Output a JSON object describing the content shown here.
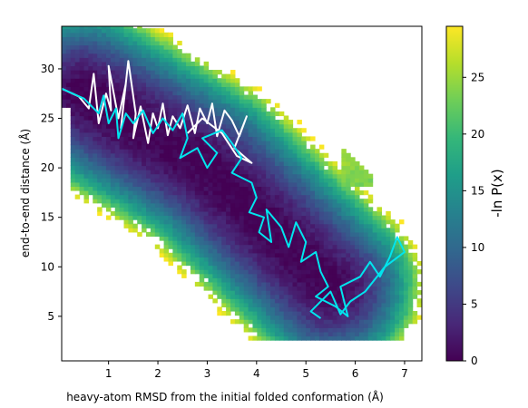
{
  "chart_data": {
    "type": "heatmap",
    "xlabel": "heavy-atom RMSD from the initial folded conformation (Å)",
    "ylabel": "end-to-end distance (Å)",
    "xlim": [
      0.05,
      7.35
    ],
    "ylim": [
      0.5,
      34.3
    ],
    "xticks": [
      1,
      2,
      3,
      4,
      5,
      6,
      7
    ],
    "yticks": [
      5,
      10,
      15,
      20,
      25,
      30
    ],
    "colorbar": {
      "label": "-ln P(x)",
      "range": [
        0,
        29.5
      ],
      "ticks": [
        0,
        5,
        10,
        15,
        20,
        25
      ],
      "colormap": "viridis"
    },
    "colors": {
      "viridis": [
        "#440154",
        "#482878",
        "#3e4989",
        "#31688e",
        "#26828e",
        "#1f9e89",
        "#35b779",
        "#6ece58",
        "#b5de2b",
        "#fde725"
      ],
      "trajectory_white": "#ffffff",
      "trajectory_cyan": "#00e5ee"
    },
    "free_energy_landscape": {
      "minimum_basin": {
        "x": 3.0,
        "y": 20.0,
        "value": 0
      },
      "basin_path": [
        [
          0.5,
          27.5
        ],
        [
          3.0,
          20.0
        ],
        [
          5.5,
          8.0
        ]
      ],
      "max_value_region": {
        "x": 6.0,
        "y": 20.0,
        "value": 27
      }
    },
    "trajectories": [
      {
        "color": "white",
        "points": [
          [
            0.05,
            28
          ],
          [
            0.4,
            27.2
          ],
          [
            0.6,
            26
          ],
          [
            0.7,
            29.5
          ],
          [
            0.8,
            24.5
          ],
          [
            0.95,
            27.5
          ],
          [
            1.05,
            25.8
          ],
          [
            1.0,
            30.3
          ],
          [
            1.2,
            25
          ],
          [
            1.35,
            28.5
          ],
          [
            1.25,
            24
          ],
          [
            1.4,
            30.8
          ],
          [
            1.55,
            25.5
          ],
          [
            1.5,
            23
          ],
          [
            1.65,
            26.2
          ],
          [
            1.8,
            22.5
          ],
          [
            1.9,
            25.5
          ],
          [
            2.0,
            24
          ],
          [
            2.1,
            26.5
          ],
          [
            2.2,
            23.3
          ],
          [
            2.3,
            25.2
          ],
          [
            2.45,
            24
          ],
          [
            2.6,
            26.3
          ],
          [
            2.75,
            23.5
          ],
          [
            2.85,
            26
          ],
          [
            3.0,
            24.5
          ],
          [
            3.1,
            26.5
          ],
          [
            3.2,
            23.2
          ],
          [
            3.35,
            25.8
          ],
          [
            3.5,
            24.8
          ],
          [
            3.65,
            23.2
          ],
          [
            3.8,
            25.2
          ],
          [
            3.55,
            22
          ],
          [
            3.9,
            20.5
          ],
          [
            3.6,
            21.2
          ],
          [
            3.3,
            23.5
          ],
          [
            2.9,
            25
          ],
          [
            2.6,
            23.5
          ]
        ]
      },
      {
        "color": "cyan",
        "points": [
          [
            0.05,
            28
          ],
          [
            0.5,
            27
          ],
          [
            0.8,
            25.5
          ],
          [
            0.9,
            27.3
          ],
          [
            1.0,
            24.5
          ],
          [
            1.15,
            26
          ],
          [
            1.2,
            23
          ],
          [
            1.35,
            25.5
          ],
          [
            1.5,
            24.5
          ],
          [
            1.7,
            25.8
          ],
          [
            1.9,
            23.5
          ],
          [
            2.1,
            25
          ],
          [
            2.3,
            23.8
          ],
          [
            2.5,
            25.5
          ],
          [
            2.6,
            23
          ],
          [
            2.45,
            21
          ],
          [
            2.8,
            22
          ],
          [
            3.0,
            20
          ],
          [
            3.2,
            21.5
          ],
          [
            2.9,
            23
          ],
          [
            3.3,
            23.8
          ],
          [
            3.5,
            22.5
          ],
          [
            3.7,
            21
          ],
          [
            3.5,
            19.5
          ],
          [
            3.9,
            18.5
          ],
          [
            4.0,
            17
          ],
          [
            3.85,
            15.5
          ],
          [
            4.15,
            15
          ],
          [
            4.05,
            13.5
          ],
          [
            4.3,
            12.5
          ],
          [
            4.2,
            15.8
          ],
          [
            4.5,
            14
          ],
          [
            4.65,
            12
          ],
          [
            4.8,
            14.5
          ],
          [
            5.0,
            12.5
          ],
          [
            4.9,
            10.5
          ],
          [
            5.2,
            11.5
          ],
          [
            5.3,
            9.5
          ],
          [
            5.45,
            8
          ],
          [
            5.2,
            7
          ],
          [
            5.6,
            6
          ],
          [
            5.85,
            5
          ],
          [
            5.7,
            8
          ],
          [
            6.1,
            9
          ],
          [
            6.3,
            10.5
          ],
          [
            6.5,
            9
          ],
          [
            6.7,
            11
          ],
          [
            6.85,
            13
          ],
          [
            7.0,
            11.5
          ],
          [
            6.6,
            10
          ],
          [
            6.2,
            7.5
          ],
          [
            5.9,
            6.5
          ],
          [
            5.7,
            5.2
          ],
          [
            5.5,
            7.5
          ],
          [
            5.1,
            5.5
          ],
          [
            5.3,
            4.8
          ]
        ]
      }
    ]
  }
}
